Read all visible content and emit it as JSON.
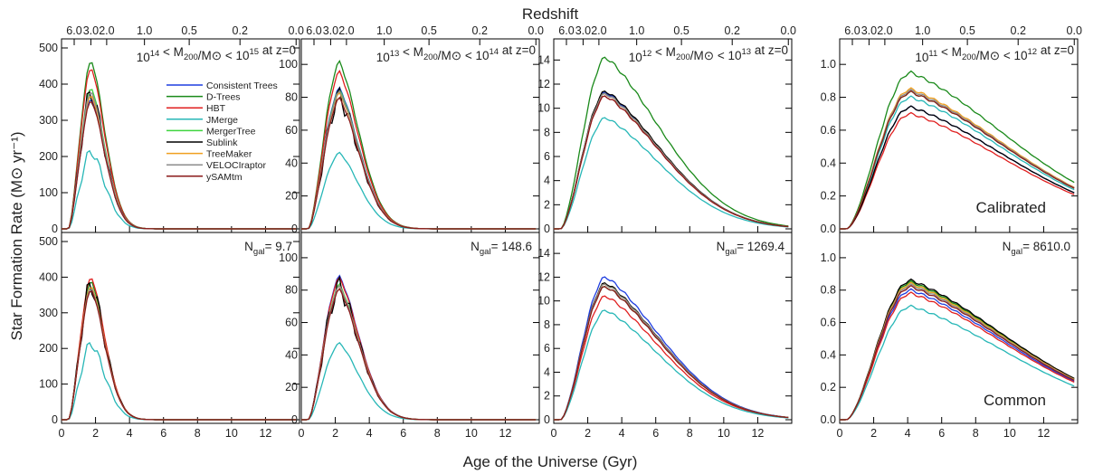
{
  "figure": {
    "top_label": "Redshift",
    "xlabel": "Age of the Universe (Gyr)",
    "ylabel": "Star Formation Rate (M⊙ yr⁻¹)",
    "row_labels": [
      "Calibrated",
      "Common"
    ]
  },
  "chart_data": {
    "type": "line",
    "layout": "2 rows x 4 columns",
    "x_range": [
      0,
      14
    ],
    "x_ticks": [
      0,
      2,
      4,
      6,
      8,
      10,
      12
    ],
    "redshift_ticks": [
      6.0,
      3.0,
      2.0,
      1.0,
      0.5,
      0.2,
      0.0
    ],
    "redshift_tick_labels": [
      "6.0",
      "3.0",
      "2.0",
      "1.0",
      "0.5",
      "0.2",
      "0.0"
    ],
    "legend": [
      {
        "name": "Consistent Trees",
        "color": "#1f3ee0"
      },
      {
        "name": "D-Trees",
        "color": "#1a8a1a"
      },
      {
        "name": "HBT",
        "color": "#e01f1f"
      },
      {
        "name": "JMerge",
        "color": "#27b7b7"
      },
      {
        "name": "MergerTree",
        "color": "#3ed43e"
      },
      {
        "name": "Sublink",
        "color": "#000000"
      },
      {
        "name": "TreeMaker",
        "color": "#f0a020"
      },
      {
        "name": "VELOCIraptor",
        "color": "#8c8c8c"
      },
      {
        "name": "ySAMtm",
        "color": "#8a1a1a"
      }
    ],
    "columns": [
      {
        "mass_bin": "10^14 < M200/M⊙ < 10^15 at z=0",
        "mass_lo": "10",
        "mass_lo_exp": "14",
        "mass_hi": "10",
        "mass_hi_exp": "15",
        "ylim": [
          0,
          500
        ],
        "yticks": [
          0,
          100,
          200,
          300,
          400,
          500
        ],
        "ngal": "9.7",
        "calibrated_peaks": {
          "Consistent Trees": 360,
          "D-Trees": 465,
          "HBT": 445,
          "JMerge": 215,
          "MergerTree": 390,
          "Sublink": 375,
          "TreeMaker": 370,
          "VELOCIraptor": 380,
          "ySAMtm": 355
        },
        "common_peaks": {
          "Consistent Trees": 375,
          "D-Trees": 390,
          "HBT": 400,
          "JMerge": 215,
          "MergerTree": 375,
          "Sublink": 380,
          "TreeMaker": 375,
          "VELOCIraptor": 370,
          "ySAMtm": 365
        }
      },
      {
        "mass_bin": "10^13 < M200/M⊙ < 10^14 at z=0",
        "mass_lo": "10",
        "mass_lo_exp": "13",
        "mass_hi": "10",
        "mass_hi_exp": "14",
        "ylim": [
          0,
          110
        ],
        "yticks": [
          0,
          20,
          40,
          60,
          80,
          100
        ],
        "ngal": "148.6",
        "calibrated_peaks": {
          "Consistent Trees": 85,
          "D-Trees": 101,
          "HBT": 95,
          "JMerge": 46,
          "MergerTree": 84,
          "Sublink": 80,
          "TreeMaker": 82,
          "VELOCIraptor": 83,
          "ySAMtm": 79
        },
        "common_peaks": {
          "Consistent Trees": 88,
          "D-Trees": 82,
          "HBT": 87,
          "JMerge": 47,
          "MergerTree": 83,
          "Sublink": 82,
          "TreeMaker": 82,
          "VELOCIraptor": 82,
          "ySAMtm": 80
        }
      },
      {
        "mass_bin": "10^12 < M200/M⊙ < 10^13 at z=0",
        "mass_lo": "10",
        "mass_lo_exp": "12",
        "mass_hi": "10",
        "mass_hi_exp": "13",
        "ylim": [
          0,
          15
        ],
        "yticks": [
          0,
          2,
          4,
          6,
          8,
          10,
          12,
          14
        ],
        "ngal": "1269.4",
        "calibrated_peaks": {
          "Consistent Trees": 11.3,
          "D-Trees": 14.2,
          "HBT": 11.0,
          "JMerge": 9.2,
          "MergerTree": 11.2,
          "Sublink": 11.4,
          "TreeMaker": 11.2,
          "VELOCIraptor": 11.2,
          "ySAMtm": 11.0
        },
        "common_peaks": {
          "Consistent Trees": 12.0,
          "D-Trees": 11.2,
          "HBT": 10.4,
          "JMerge": 9.2,
          "MergerTree": 11.4,
          "Sublink": 11.5,
          "TreeMaker": 11.4,
          "VELOCIraptor": 11.4,
          "ySAMtm": 11.2
        }
      },
      {
        "mass_bin": "10^11 < M200/M⊙ < 10^12 at z=0",
        "mass_lo": "10",
        "mass_lo_exp": "11",
        "mass_hi": "10",
        "mass_hi_exp": "12",
        "ylim": [
          0,
          1.1
        ],
        "yticks": [
          0.0,
          0.2,
          0.4,
          0.6,
          0.8,
          1.0
        ],
        "ngal": "8610.0",
        "calibrated_peaks": {
          "Consistent Trees": 0.74,
          "D-Trees": 0.95,
          "HBT": 0.7,
          "JMerge": 0.8,
          "MergerTree": 0.83,
          "Sublink": 0.74,
          "TreeMaker": 0.85,
          "VELOCIraptor": 0.84,
          "ySAMtm": 0.83
        },
        "common_peaks": {
          "Consistent Trees": 0.8,
          "D-Trees": 0.85,
          "HBT": 0.78,
          "JMerge": 0.7,
          "MergerTree": 0.84,
          "Sublink": 0.86,
          "TreeMaker": 0.84,
          "VELOCIraptor": 0.83,
          "ySAMtm": 0.82
        }
      }
    ]
  }
}
